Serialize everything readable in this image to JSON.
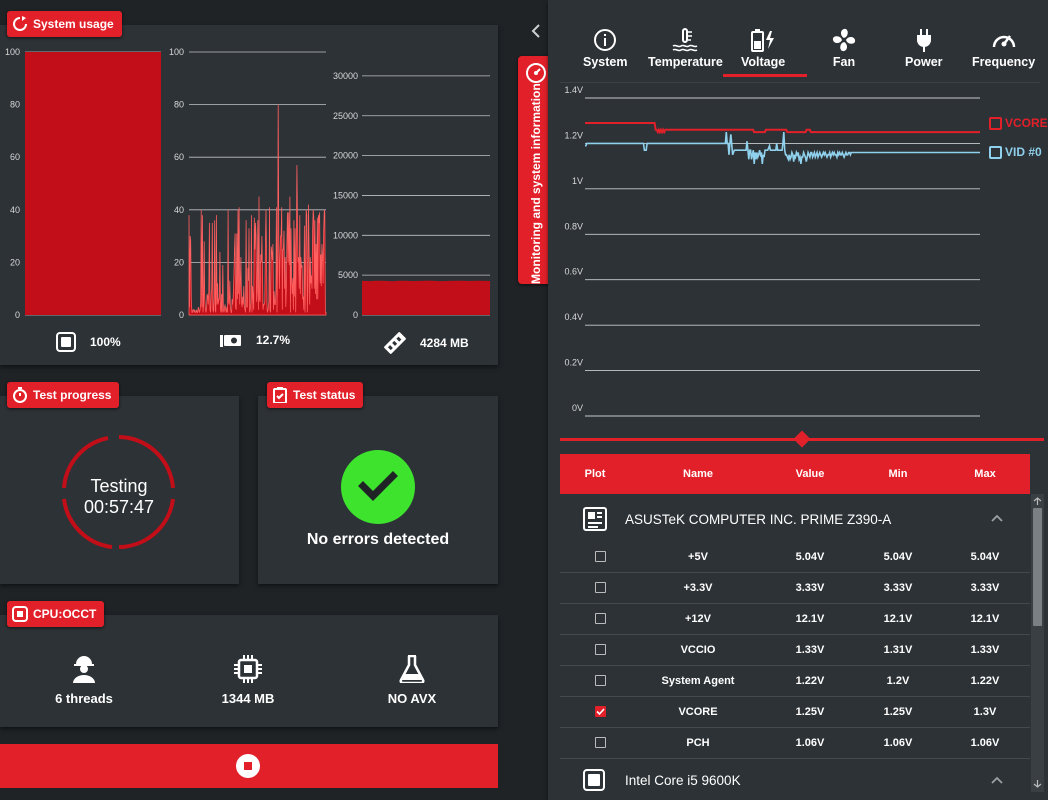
{
  "system_usage": {
    "title": "System usage",
    "cpu": {
      "value": "100%",
      "ticks": [
        "100",
        "80",
        "60",
        "40",
        "20",
        "0"
      ],
      "series": [
        100,
        100
      ]
    },
    "cpu_thread": {
      "value": "12.7%",
      "ticks": [
        "100",
        "80",
        "60",
        "40",
        "20",
        "0"
      ],
      "series": [
        38,
        3,
        30,
        28,
        6,
        1,
        1,
        2,
        2,
        1,
        2,
        1,
        1,
        2,
        1,
        1,
        3,
        2,
        1,
        2,
        5,
        40,
        3,
        38,
        1,
        4,
        28,
        7,
        3,
        1,
        2,
        8,
        7,
        4,
        9,
        35,
        2,
        1,
        8,
        10,
        35,
        2,
        1,
        7,
        36,
        2,
        1,
        38,
        4,
        12,
        4,
        6,
        6,
        24,
        2,
        1,
        8,
        1,
        19,
        2,
        1,
        3,
        4,
        2,
        1,
        3,
        1,
        40,
        5,
        4,
        13,
        3,
        1,
        1,
        6,
        4,
        8,
        15,
        25,
        31,
        3,
        2,
        31,
        6,
        40,
        8,
        41,
        4,
        12,
        22,
        5,
        3,
        7,
        4,
        11,
        3,
        2,
        1,
        36,
        3,
        3,
        18,
        13,
        33,
        1,
        2,
        5,
        38,
        1,
        11,
        7,
        2,
        37,
        25,
        35,
        30,
        5,
        9,
        36,
        2,
        45,
        6,
        5,
        23,
        20,
        30,
        16,
        2,
        4,
        4,
        5,
        27,
        40,
        24,
        2,
        1,
        3,
        5,
        41,
        2,
        1,
        26,
        24,
        21,
        27,
        2,
        9,
        4,
        4,
        9,
        41,
        1,
        20,
        80,
        27,
        10,
        21,
        30,
        30,
        41,
        2,
        25,
        25,
        32,
        10,
        22,
        3,
        11,
        28,
        39,
        20,
        39,
        19,
        45,
        1,
        33,
        13,
        8,
        14,
        2,
        36,
        7,
        33,
        1,
        26,
        57,
        40,
        20,
        22,
        10,
        38,
        8,
        22,
        18,
        19,
        6,
        7,
        2,
        34,
        1,
        20,
        40,
        38,
        1,
        11,
        42,
        24,
        4,
        22,
        12,
        15,
        10,
        32,
        40,
        37,
        10,
        36,
        8,
        27,
        6,
        37,
        6,
        38,
        35,
        39,
        12,
        23,
        11,
        27,
        23,
        12,
        32,
        40,
        39,
        1,
        1
      ]
    },
    "memory": {
      "value": "4284 MB",
      "ticks": [
        "30000",
        "25000",
        "20000",
        "15000",
        "10000",
        "5000",
        "0"
      ],
      "series": [
        4300,
        4270,
        4250,
        4290,
        4310,
        4280,
        4260,
        4240,
        4280,
        4300,
        4290,
        4270,
        4260,
        4280,
        4300,
        4320,
        4290,
        4270,
        4250,
        4260,
        4280,
        4300,
        4310,
        4290,
        4270,
        4280,
        4300,
        4290,
        4280,
        4260
      ]
    }
  },
  "test_progress": {
    "title": "Test progress",
    "status": "Testing",
    "elapsed": "00:57:47"
  },
  "test_status": {
    "title": "Test status",
    "message": "No errors detected"
  },
  "cpu_test": {
    "title": "CPU:OCCT",
    "threads": "6 threads",
    "memory": "1344 MB",
    "instruction_set": "NO AVX"
  },
  "monitoring": {
    "side_tab_label": "Monitoring and system information",
    "tabs": [
      {
        "label": "System",
        "icon": "info-icon"
      },
      {
        "label": "Temperature",
        "icon": "thermometer-icon"
      },
      {
        "label": "Voltage",
        "icon": "battery-bolt-icon"
      },
      {
        "label": "Fan",
        "icon": "fan-icon"
      },
      {
        "label": "Power",
        "icon": "plug-icon"
      },
      {
        "label": "Frequency",
        "icon": "gauge-icon"
      }
    ],
    "active_tab": "Voltage",
    "colors": {
      "accent": "#e2202a",
      "vid": "#8fd0ec",
      "panel": "#2d3236"
    }
  },
  "chart_data": {
    "type": "line",
    "ylim": [
      0,
      1.4
    ],
    "y_ticks": [
      "1.4V",
      "1.2V",
      "1V",
      "0.8V",
      "0.6V",
      "0.4V",
      "0.2V",
      "0V"
    ],
    "grid": true,
    "legend_position": "right",
    "series": [
      {
        "name": "VCORE",
        "color": "#e2202a",
        "values": [
          1.29,
          1.29,
          1.29,
          1.29,
          1.29,
          1.29,
          1.29,
          1.29,
          1.29,
          1.29,
          1.29,
          1.29,
          1.29,
          1.29,
          1.29,
          1.29,
          1.29,
          1.29,
          1.29,
          1.29,
          1.29,
          1.29,
          1.29,
          1.29,
          1.29,
          1.29,
          1.29,
          1.29,
          1.29,
          1.29,
          1.29,
          1.29,
          1.29,
          1.29,
          1.29,
          1.29,
          1.29,
          1.29,
          1.29,
          1.29,
          1.29,
          1.29,
          1.29,
          1.29,
          1.29,
          1.29,
          1.29,
          1.29,
          1.29,
          1.29,
          1.29,
          1.29,
          1.29,
          1.29,
          1.29,
          1.29,
          1.29,
          1.29,
          1.29,
          1.29,
          1.29,
          1.29,
          1.29,
          1.29,
          1.29,
          1.29,
          1.26,
          1.26,
          1.25,
          1.26,
          1.25,
          1.26,
          1.25,
          1.26,
          1.25,
          1.26,
          1.26,
          1.26,
          1.26,
          1.26,
          1.26,
          1.26,
          1.26,
          1.26,
          1.26,
          1.26,
          1.26,
          1.26,
          1.26,
          1.26,
          1.26,
          1.26,
          1.26,
          1.26,
          1.26,
          1.26,
          1.26,
          1.26,
          1.26,
          1.26,
          1.26,
          1.26,
          1.26,
          1.26,
          1.26,
          1.26,
          1.26,
          1.26,
          1.26,
          1.26,
          1.26,
          1.26,
          1.26,
          1.26,
          1.26,
          1.26,
          1.26,
          1.26,
          1.26,
          1.26,
          1.26,
          1.26,
          1.26,
          1.26,
          1.26,
          1.26,
          1.26,
          1.26,
          1.26,
          1.26,
          1.26,
          1.26,
          1.26,
          1.26,
          1.26,
          1.26,
          1.26,
          1.26,
          1.26,
          1.26,
          1.26,
          1.26,
          1.26,
          1.26,
          1.26,
          1.26,
          1.26,
          1.26,
          1.26,
          1.26,
          1.26,
          1.26,
          1.26,
          1.26,
          1.26,
          1.26,
          1.26,
          1.26,
          1.25,
          1.25,
          1.25,
          1.25,
          1.25,
          1.25,
          1.25,
          1.25,
          1.25,
          1.25,
          1.25,
          1.26,
          1.26,
          1.26,
          1.26,
          1.26,
          1.26,
          1.26,
          1.26,
          1.26,
          1.26,
          1.26,
          1.26,
          1.26,
          1.26,
          1.26,
          1.26,
          1.26,
          1.26,
          1.26,
          1.26,
          1.25,
          1.25,
          1.25,
          1.25,
          1.25,
          1.25,
          1.25,
          1.25,
          1.25,
          1.25,
          1.25,
          1.25,
          1.25,
          1.25,
          1.25,
          1.25,
          1.25,
          1.25,
          1.26,
          1.26,
          1.26,
          1.26,
          1.25,
          1.25,
          1.25,
          1.25,
          1.25,
          1.25,
          1.25,
          1.25,
          1.25,
          1.25,
          1.25,
          1.25,
          1.25,
          1.25,
          1.25,
          1.25,
          1.25,
          1.25,
          1.25,
          1.25,
          1.25,
          1.25,
          1.25,
          1.25,
          1.25,
          1.25,
          1.25,
          1.25,
          1.25,
          1.25,
          1.25,
          1.25,
          1.25,
          1.25,
          1.25,
          1.25,
          1.25,
          1.25,
          1.25,
          1.25,
          1.25,
          1.25,
          1.25,
          1.25,
          1.25,
          1.25,
          1.25,
          1.25,
          1.25,
          1.25,
          1.25,
          1.25,
          1.25,
          1.25,
          1.25,
          1.25,
          1.25,
          1.25,
          1.25,
          1.25,
          1.25,
          1.25,
          1.25,
          1.25,
          1.25,
          1.25,
          1.25,
          1.25,
          1.25,
          1.25,
          1.25,
          1.25,
          1.25,
          1.25,
          1.25,
          1.25,
          1.25,
          1.25,
          1.25,
          1.25,
          1.25,
          1.25,
          1.25,
          1.25,
          1.25,
          1.25,
          1.25,
          1.25,
          1.25,
          1.25,
          1.25,
          1.25,
          1.25,
          1.25,
          1.25,
          1.25,
          1.25,
          1.25,
          1.25,
          1.25,
          1.25,
          1.25,
          1.25,
          1.25,
          1.25,
          1.25,
          1.25,
          1.25,
          1.25,
          1.25,
          1.25,
          1.25,
          1.25,
          1.25,
          1.25,
          1.25,
          1.25,
          1.25,
          1.25,
          1.25,
          1.25,
          1.25,
          1.25,
          1.25,
          1.25,
          1.25,
          1.25,
          1.25,
          1.25,
          1.25,
          1.25,
          1.25,
          1.25,
          1.25,
          1.25,
          1.25,
          1.25,
          1.25,
          1.25,
          1.25,
          1.25,
          1.25,
          1.25,
          1.25,
          1.25,
          1.25,
          1.25,
          1.25,
          1.25,
          1.25,
          1.25,
          1.25,
          1.25,
          1.25,
          1.25,
          1.25,
          1.25,
          1.25,
          1.25
        ]
      },
      {
        "name": "VID #0",
        "color": "#8fd0ec",
        "values": [
          1.19,
          1.19,
          1.2,
          1.2,
          1.2,
          1.2,
          1.2,
          1.2,
          1.2,
          1.2,
          1.2,
          1.2,
          1.2,
          1.2,
          1.2,
          1.2,
          1.2,
          1.2,
          1.2,
          1.2,
          1.2,
          1.2,
          1.2,
          1.2,
          1.2,
          1.2,
          1.2,
          1.2,
          1.2,
          1.2,
          1.2,
          1.2,
          1.2,
          1.2,
          1.2,
          1.2,
          1.2,
          1.2,
          1.2,
          1.2,
          1.2,
          1.2,
          1.2,
          1.2,
          1.2,
          1.2,
          1.2,
          1.2,
          1.2,
          1.2,
          1.2,
          1.2,
          1.2,
          1.2,
          1.2,
          1.2,
          1.2,
          1.2,
          1.2,
          1.2,
          1.2,
          1.2,
          1.2,
          1.2,
          1.2,
          1.2,
          1.17,
          1.17,
          1.17,
          1.2,
          1.2,
          1.2,
          1.2,
          1.2,
          1.2,
          1.2,
          1.2,
          1.2,
          1.2,
          1.2,
          1.2,
          1.2,
          1.2,
          1.2,
          1.2,
          1.2,
          1.2,
          1.2,
          1.2,
          1.2,
          1.2,
          1.2,
          1.2,
          1.2,
          1.2,
          1.2,
          1.2,
          1.2,
          1.2,
          1.2,
          1.2,
          1.2,
          1.2,
          1.2,
          1.2,
          1.2,
          1.2,
          1.2,
          1.2,
          1.2,
          1.2,
          1.2,
          1.2,
          1.2,
          1.2,
          1.2,
          1.2,
          1.2,
          1.2,
          1.2,
          1.2,
          1.2,
          1.2,
          1.2,
          1.2,
          1.2,
          1.2,
          1.2,
          1.2,
          1.2,
          1.2,
          1.2,
          1.2,
          1.2,
          1.2,
          1.2,
          1.2,
          1.2,
          1.2,
          1.2,
          1.2,
          1.2,
          1.2,
          1.2,
          1.2,
          1.2,
          1.2,
          1.2,
          1.2,
          1.2,
          1.2,
          1.2,
          1.2,
          1.2,
          1.2,
          1.2,
          1.2,
          1.25,
          1.2,
          1.2,
          1.15,
          1.2,
          1.24,
          1.2,
          1.15,
          1.16,
          1.17,
          1.17,
          1.17,
          1.17,
          1.17,
          1.17,
          1.17,
          1.17,
          1.17,
          1.17,
          1.17,
          1.17,
          1.17,
          1.17,
          1.21,
          1.17,
          1.13,
          1.17,
          1.17,
          1.13,
          1.15,
          1.17,
          1.11,
          1.16,
          1.13,
          1.16,
          1.14,
          1.15,
          1.17,
          1.15,
          1.16,
          1.11,
          1.15,
          1.14,
          1.17,
          1.17,
          1.17,
          1.17,
          1.18,
          1.19,
          1.17,
          1.17,
          1.17,
          1.17,
          1.17,
          1.17,
          1.17,
          1.2,
          1.17,
          1.17,
          1.17,
          1.17,
          1.17,
          1.17,
          1.2,
          1.25,
          1.17,
          1.15,
          1.15,
          1.14,
          1.13,
          1.15,
          1.13,
          1.14,
          1.16,
          1.15,
          1.12,
          1.15,
          1.14,
          1.16,
          1.15,
          1.16,
          1.13,
          1.14,
          1.11,
          1.14,
          1.14,
          1.16,
          1.15,
          1.14,
          1.12,
          1.14,
          1.16,
          1.15,
          1.14,
          1.16,
          1.16,
          1.14,
          1.15,
          1.16,
          1.14,
          1.15,
          1.16,
          1.14,
          1.15,
          1.16,
          1.15,
          1.14,
          1.15,
          1.16,
          1.15,
          1.16,
          1.15,
          1.14,
          1.15,
          1.15,
          1.16,
          1.14,
          1.15,
          1.16,
          1.15,
          1.16,
          1.15,
          1.15,
          1.14,
          1.16,
          1.15,
          1.16,
          1.15,
          1.15,
          1.16,
          1.15,
          1.14,
          1.15,
          1.16,
          1.15,
          1.15,
          1.16,
          1.16,
          1.15,
          1.16,
          1.16,
          1.16,
          1.16,
          1.16,
          1.16,
          1.16,
          1.16,
          1.16,
          1.16,
          1.16,
          1.16,
          1.16,
          1.16,
          1.16,
          1.16,
          1.16,
          1.16,
          1.16,
          1.16,
          1.16,
          1.16,
          1.16,
          1.16,
          1.16,
          1.16,
          1.16,
          1.16,
          1.16,
          1.16,
          1.16,
          1.16,
          1.16,
          1.16,
          1.16,
          1.16,
          1.16,
          1.16,
          1.16,
          1.16,
          1.16,
          1.16,
          1.16,
          1.16,
          1.16,
          1.16,
          1.16,
          1.16,
          1.16,
          1.16,
          1.16,
          1.16,
          1.16,
          1.16,
          1.16,
          1.16,
          1.16,
          1.16,
          1.16,
          1.16,
          1.16,
          1.16,
          1.16,
          1.16,
          1.16,
          1.16,
          1.16,
          1.16,
          1.16,
          1.16,
          1.16,
          1.16,
          1.16,
          1.16,
          1.16,
          1.16,
          1.16,
          1.16,
          1.16,
          1.16,
          1.16,
          1.16,
          1.16,
          1.16,
          1.16,
          1.16,
          1.16,
          1.16,
          1.16,
          1.16,
          1.16,
          1.16,
          1.16,
          1.16,
          1.16,
          1.16,
          1.16,
          1.16,
          1.16,
          1.16,
          1.16,
          1.16,
          1.16,
          1.16,
          1.16,
          1.16,
          1.16,
          1.16,
          1.16,
          1.16,
          1.16,
          1.16,
          1.16,
          1.16,
          1.16,
          1.16,
          1.16,
          1.16,
          1.16,
          1.16,
          1.16,
          1.16,
          1.16,
          1.16,
          1.16,
          1.16,
          1.16,
          1.16,
          1.16,
          1.16,
          1.16,
          1.16,
          1.16,
          1.16,
          1.16,
          1.16,
          1.16,
          1.16,
          1.16,
          1.16,
          1.16,
          1.16,
          1.16,
          1.16
        ]
      }
    ]
  },
  "sensor_table": {
    "headers": {
      "plot": "Plot",
      "name": "Name",
      "value": "Value",
      "min": "Min",
      "max": "Max"
    },
    "groups": [
      {
        "name": "ASUSTeK COMPUTER INC. PRIME Z390-A",
        "icon": "motherboard-icon",
        "rows": [
          {
            "name": "+5V",
            "value": "5.04V",
            "min": "5.04V",
            "max": "5.04V",
            "checked": false
          },
          {
            "name": "+3.3V",
            "value": "3.33V",
            "min": "3.33V",
            "max": "3.33V",
            "checked": false
          },
          {
            "name": "+12V",
            "value": "12.1V",
            "min": "12.1V",
            "max": "12.1V",
            "checked": false
          },
          {
            "name": "VCCIO",
            "value": "1.33V",
            "min": "1.31V",
            "max": "1.33V",
            "checked": false
          },
          {
            "name": "System Agent",
            "value": "1.22V",
            "min": "1.2V",
            "max": "1.22V",
            "checked": false
          },
          {
            "name": "VCORE",
            "value": "1.25V",
            "min": "1.25V",
            "max": "1.3V",
            "checked": true
          },
          {
            "name": "PCH",
            "value": "1.06V",
            "min": "1.06V",
            "max": "1.06V",
            "checked": false
          }
        ]
      },
      {
        "name": "Intel Core i5 9600K",
        "icon": "cpu-icon",
        "rows": []
      }
    ]
  }
}
